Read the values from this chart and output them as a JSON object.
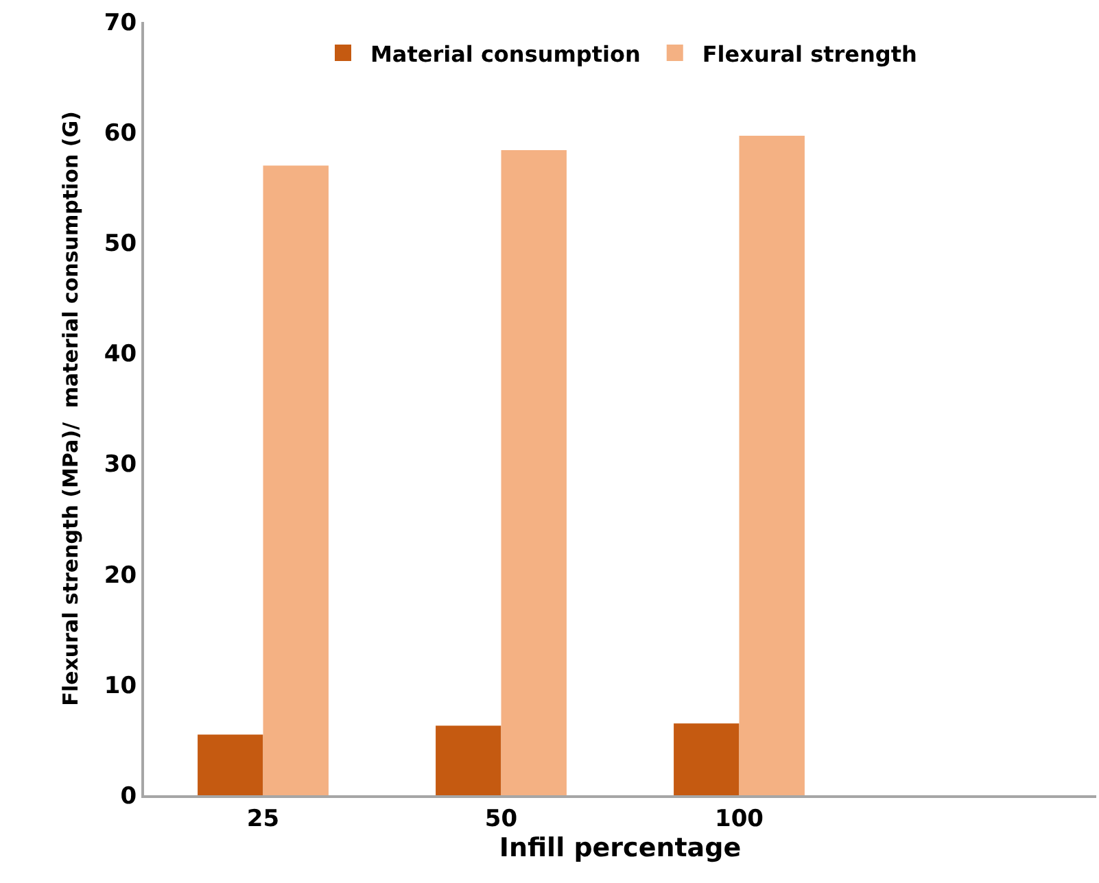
{
  "chart_data": {
    "type": "bar",
    "xlabel": "Infill percentage",
    "ylabel": "Flexural strength (MPa)/  material consumption (G)",
    "categories": [
      "25",
      "50",
      "100",
      null
    ],
    "series": [
      {
        "name": "Material consumption",
        "color": "#c55a11",
        "values": [
          5.5,
          6.3,
          6.5,
          null
        ]
      },
      {
        "name": "Flexural strength",
        "color": "#f4b183",
        "values": [
          57.0,
          58.4,
          59.7,
          null
        ]
      }
    ],
    "ylim": [
      0,
      70
    ],
    "yticks": [
      0,
      10,
      20,
      30,
      40,
      50,
      60,
      70
    ],
    "legend": "top"
  }
}
